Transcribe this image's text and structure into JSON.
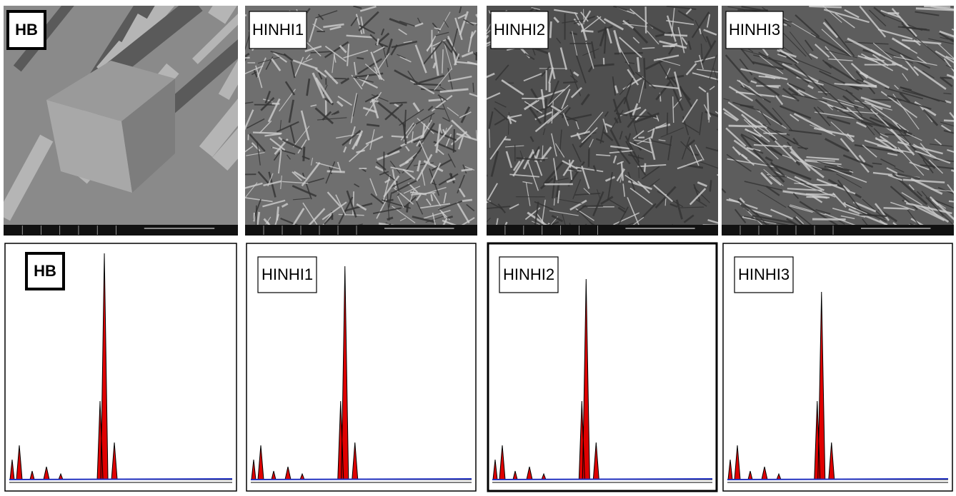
{
  "panels": [
    {
      "sem_label": "HB",
      "eds_label": "HB"
    },
    {
      "sem_label": "HINHI1",
      "eds_label": "HINHI1"
    },
    {
      "sem_label": "HINHI2",
      "eds_label": "HINHI2"
    },
    {
      "sem_label": "HINHI3",
      "eds_label": "HINHI3"
    }
  ]
}
